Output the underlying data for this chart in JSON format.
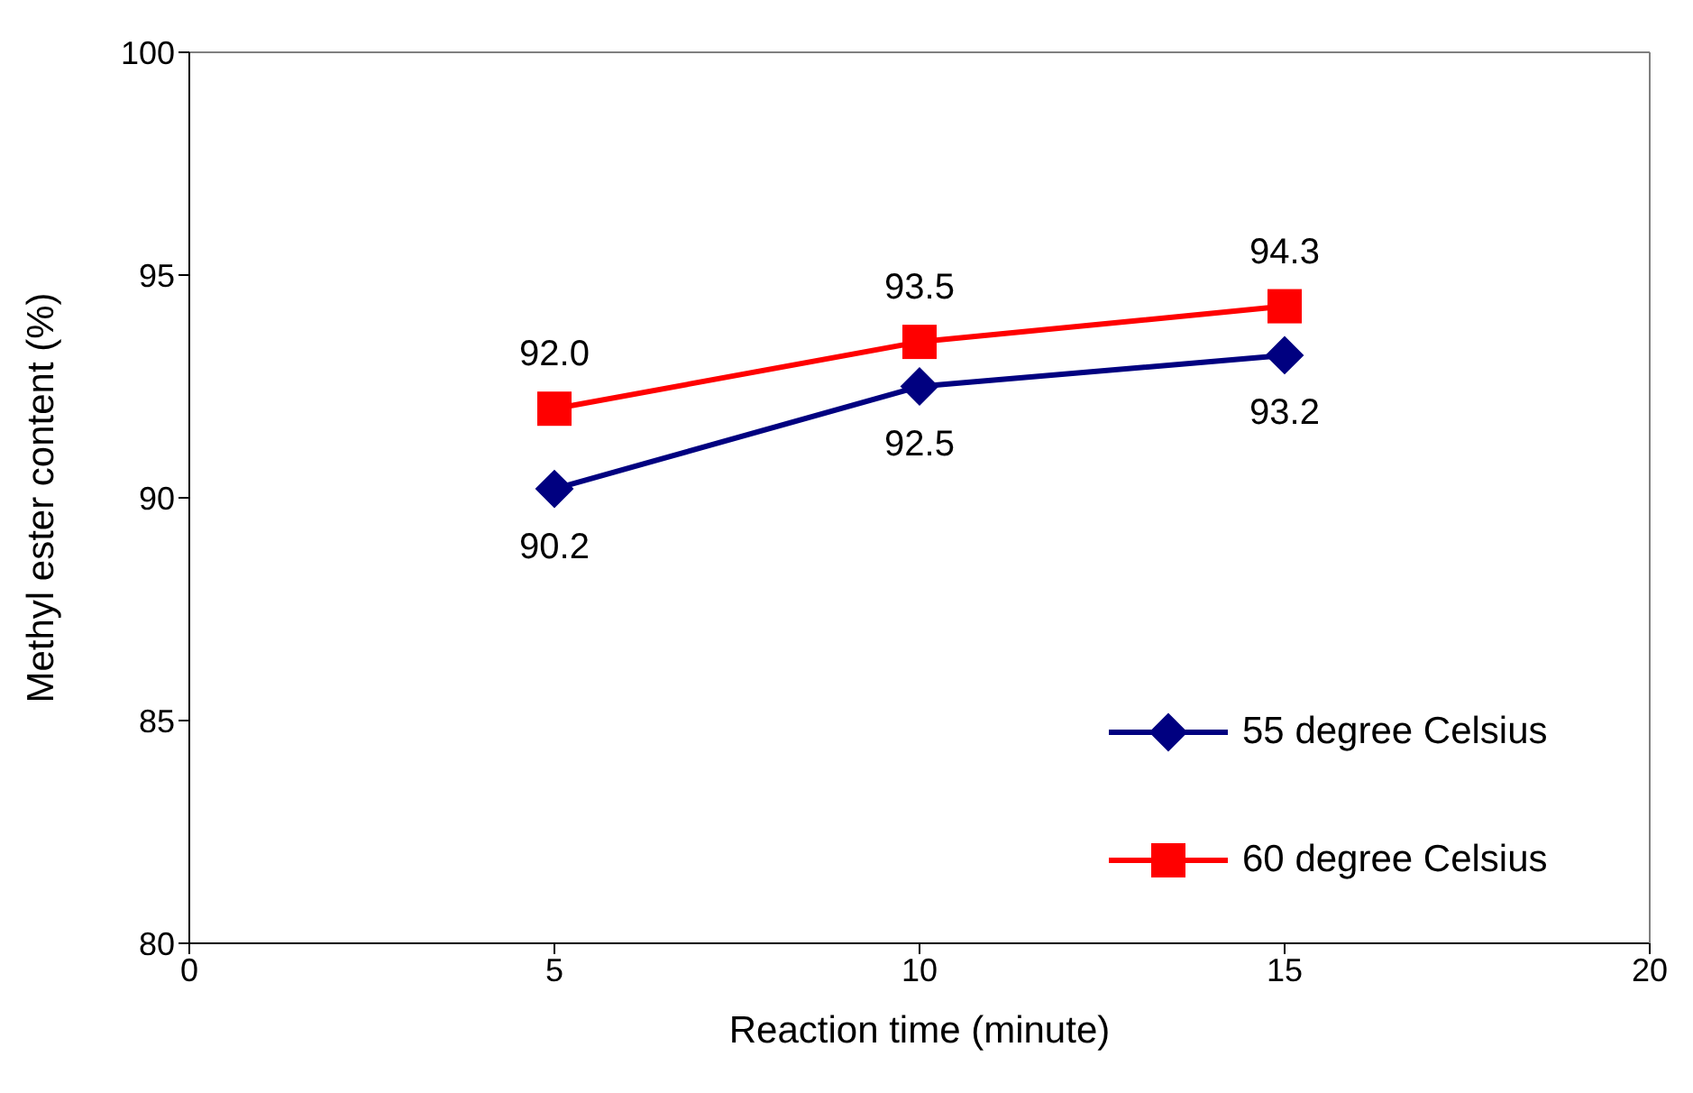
{
  "chart_data": {
    "type": "line",
    "xlabel": "Reaction time (minute)",
    "ylabel": "Methyl ester content (%)",
    "x": [
      5,
      10,
      15
    ],
    "series": [
      {
        "name": "55 degree Celsius",
        "color": "#000080",
        "marker": "diamond",
        "values": [
          90.2,
          92.5,
          93.2
        ],
        "value_labels": [
          "90.2",
          "92.5",
          "93.2"
        ]
      },
      {
        "name": "60 degree Celsius",
        "color": "#ff0000",
        "marker": "square",
        "values": [
          92.0,
          93.5,
          94.3
        ],
        "value_labels": [
          "92.0",
          "93.5",
          "94.3"
        ]
      }
    ],
    "xlim": [
      0,
      20
    ],
    "xticks": [
      0,
      5,
      10,
      15,
      20
    ],
    "ylim": [
      80,
      100
    ],
    "yticks": [
      80,
      85,
      90,
      95,
      100
    ],
    "grid": false,
    "legend": "bottom right"
  }
}
